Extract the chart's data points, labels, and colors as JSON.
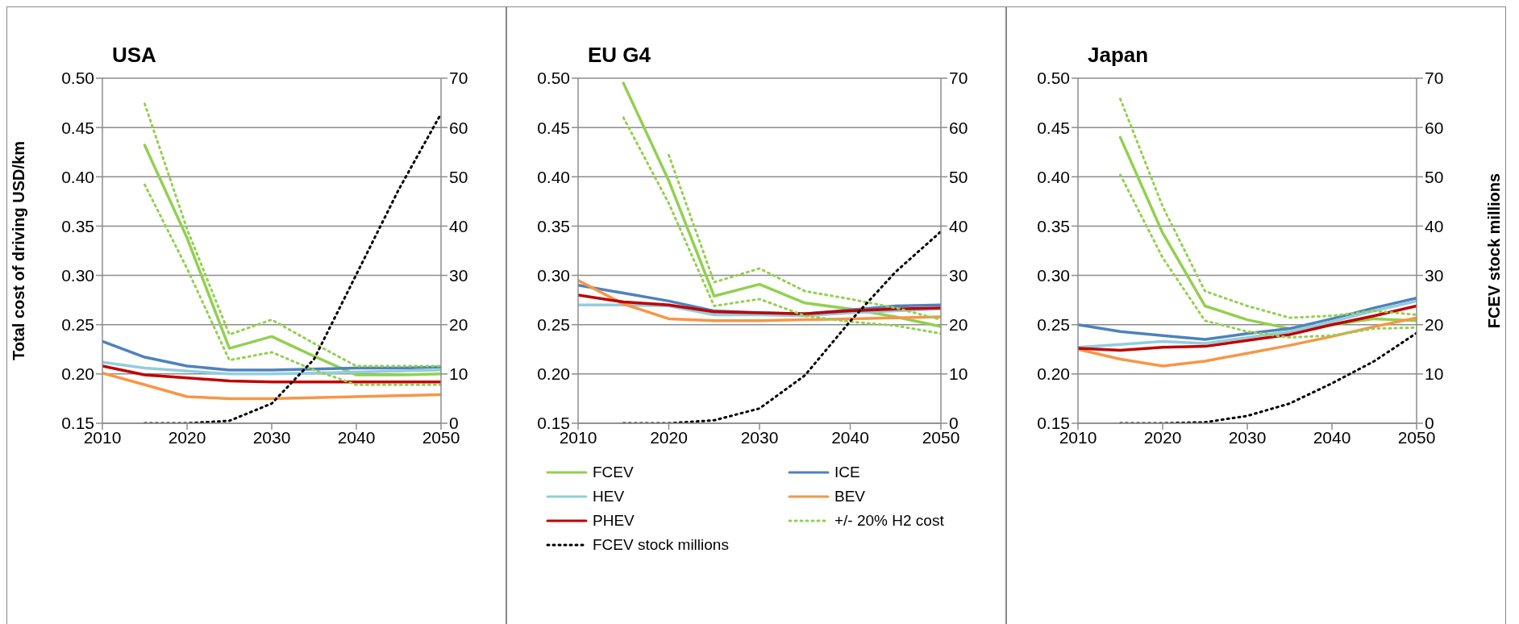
{
  "chart_data": [
    {
      "type": "line",
      "title": "USA",
      "ylabel": "Total cost of driving USD/km",
      "x": [
        2015,
        2020,
        2025,
        2030,
        2035,
        2040,
        2045,
        2050
      ],
      "xlim": [
        2010,
        2050
      ],
      "xticks": [
        2010,
        2020,
        2030,
        2040,
        2050
      ],
      "ylim": [
        0.15,
        0.5
      ],
      "yticks": [
        {
          "value": 0.15,
          "label": "0.15"
        },
        {
          "value": 0.2,
          "label": "0.20"
        },
        {
          "value": 0.25,
          "label": "0.25"
        },
        {
          "value": 0.3,
          "label": "0.30"
        },
        {
          "value": 0.35,
          "label": "0.35"
        },
        {
          "value": 0.4,
          "label": "0.40"
        },
        {
          "value": 0.45,
          "label": "0.45"
        },
        {
          "value": 0.5,
          "label": "0.50"
        }
      ],
      "y2lim": [
        0,
        70
      ],
      "y2ticks": [
        0,
        10,
        20,
        30,
        40,
        50,
        60,
        70
      ],
      "grid": "y",
      "legend": false,
      "marker": "none",
      "series": [
        {
          "color": "#92d050",
          "x": [
            2015,
            2020,
            2025,
            2030,
            2035,
            2040,
            2045,
            2050
          ],
          "values": [
            0.432,
            0.338,
            0.226,
            0.238,
            0.218,
            0.199,
            0.199,
            0.2
          ]
        },
        {
          "color": "#4f81bd",
          "x": [
            2010,
            2015,
            2020,
            2025,
            2030,
            2035,
            2040,
            2045,
            2050
          ],
          "values": [
            0.233,
            0.217,
            0.208,
            0.204,
            0.204,
            0.205,
            0.206,
            0.206,
            0.207
          ]
        },
        {
          "color": "#93cddd",
          "x": [
            2010,
            2015,
            2020,
            2025,
            2030,
            2035,
            2040,
            2045,
            2050
          ],
          "values": [
            0.212,
            0.206,
            0.203,
            0.2,
            0.2,
            0.201,
            0.202,
            0.203,
            0.204
          ]
        },
        {
          "color": "#f79646",
          "x": [
            2010,
            2015,
            2020,
            2025,
            2030,
            2035,
            2040,
            2045,
            2050
          ],
          "values": [
            0.201,
            0.189,
            0.177,
            0.175,
            0.175,
            0.176,
            0.177,
            0.178,
            0.179
          ]
        },
        {
          "color": "#c00000",
          "x": [
            2010,
            2015,
            2020,
            2025,
            2030,
            2035,
            2040,
            2045,
            2050
          ],
          "values": [
            0.208,
            0.199,
            0.196,
            0.193,
            0.192,
            0.192,
            0.192,
            0.192,
            0.192
          ]
        },
        {
          "color": "#92d050",
          "line_style": "dotted",
          "values": [
            0.474,
            0.347,
            0.24,
            0.255,
            0.231,
            0.208,
            0.208,
            0.208
          ]
        },
        {
          "color": "#92d050",
          "line_style": "dotted",
          "values": [
            0.392,
            0.307,
            0.214,
            0.222,
            0.204,
            0.189,
            0.189,
            0.189
          ]
        },
        {
          "color": "#000000",
          "line_style": "dotted",
          "axis": "y2",
          "values": [
            0,
            0,
            0.5,
            4,
            13,
            30.2,
            47.4,
            62.8
          ]
        }
      ]
    },
    {
      "type": "line",
      "title": "EU G4",
      "x": [
        2015,
        2020,
        2025,
        2030,
        2035,
        2040,
        2045,
        2050
      ],
      "xlim": [
        2010,
        2050
      ],
      "xticks": [
        2010,
        2020,
        2030,
        2040,
        2050
      ],
      "ylim": [
        0.15,
        0.5
      ],
      "yticks": [
        {
          "value": 0.15,
          "label": "0.15"
        },
        {
          "value": 0.2,
          "label": "0.20"
        },
        {
          "value": 0.25,
          "label": "0.25"
        },
        {
          "value": 0.3,
          "label": "0.30"
        },
        {
          "value": 0.35,
          "label": "0.35"
        },
        {
          "value": 0.4,
          "label": "0.40"
        },
        {
          "value": 0.45,
          "label": "0.45"
        },
        {
          "value": 0.5,
          "label": "0.50"
        }
      ],
      "y2lim": [
        0,
        70
      ],
      "y2ticks": [
        0,
        10,
        20,
        30,
        40,
        50,
        60,
        70
      ],
      "grid": "y",
      "legend": "bottom",
      "marker": "none",
      "series": [
        {
          "name": "FCEV",
          "color": "#92d050",
          "values": [
            0.495,
            0.396,
            0.279,
            0.291,
            0.272,
            0.266,
            0.258,
            0.248
          ]
        },
        {
          "name": "ICE",
          "color": "#4f81bd",
          "x": [
            2010,
            2015,
            2020,
            2025,
            2030,
            2035,
            2040,
            2045,
            2050
          ],
          "values": [
            0.29,
            0.282,
            0.274,
            0.264,
            0.262,
            0.261,
            0.265,
            0.269,
            0.27
          ]
        },
        {
          "name": "HEV",
          "color": "#93cddd",
          "x": [
            2010,
            2015,
            2020,
            2025,
            2030,
            2035,
            2040,
            2045,
            2050
          ],
          "values": [
            0.27,
            0.27,
            0.269,
            0.26,
            0.26,
            0.259,
            0.262,
            0.264,
            0.266
          ]
        },
        {
          "name": "BEV",
          "color": "#f79646",
          "x": [
            2010,
            2015,
            2020,
            2025,
            2030,
            2035,
            2040,
            2045,
            2050
          ],
          "values": [
            0.295,
            0.271,
            0.256,
            0.254,
            0.254,
            0.255,
            0.256,
            0.257,
            0.258
          ]
        },
        {
          "name": "PHEV",
          "color": "#c00000",
          "x": [
            2010,
            2015,
            2020,
            2025,
            2030,
            2035,
            2040,
            2045,
            2050
          ],
          "values": [
            0.28,
            0.273,
            0.27,
            0.263,
            0.262,
            0.261,
            0.264,
            0.266,
            0.267
          ]
        },
        {
          "name": "+/- 20% H2 cost",
          "color": "#92d050",
          "line_style": "dotted",
          "values": [
            null,
            0.422,
            0.293,
            0.307,
            0.284,
            0.276,
            0.267,
            0.255
          ]
        },
        {
          "color": "#92d050",
          "line_style": "dotted",
          "values": [
            0.46,
            0.373,
            0.269,
            0.276,
            0.259,
            0.253,
            0.249,
            0.241
          ]
        },
        {
          "name": "FCEV stock millions",
          "color": "#000000",
          "line_style": "dotted",
          "axis": "y2",
          "values": [
            0,
            0,
            0.6,
            3,
            9.7,
            20.7,
            30.7,
            38.9
          ]
        }
      ]
    },
    {
      "type": "line",
      "title": "Japan",
      "y2label": "FCEV stock millions",
      "x": [
        2015,
        2020,
        2025,
        2030,
        2035,
        2040,
        2045,
        2050
      ],
      "xlim": [
        2010,
        2050
      ],
      "xticks": [
        2010,
        2020,
        2030,
        2040,
        2050
      ],
      "ylim": [
        0.15,
        0.5
      ],
      "yticks": [
        {
          "value": 0.15,
          "label": "0.15"
        },
        {
          "value": 0.2,
          "label": "0.20"
        },
        {
          "value": 0.25,
          "label": "0.25"
        },
        {
          "value": 0.3,
          "label": "0.30"
        },
        {
          "value": 0.35,
          "label": "0.35"
        },
        {
          "value": 0.4,
          "label": "0.40"
        },
        {
          "value": 0.45,
          "label": "0.45"
        },
        {
          "value": 0.5,
          "label": "0.50"
        }
      ],
      "y2lim": [
        0,
        70
      ],
      "y2ticks": [
        0,
        10,
        20,
        30,
        40,
        50,
        60,
        70
      ],
      "grid": "y",
      "legend": false,
      "marker": "none",
      "series": [
        {
          "color": "#92d050",
          "values": [
            0.44,
            0.343,
            0.269,
            0.255,
            0.246,
            0.25,
            0.256,
            0.254
          ]
        },
        {
          "color": "#4f81bd",
          "x": [
            2010,
            2015,
            2020,
            2025,
            2030,
            2035,
            2040,
            2045,
            2050
          ],
          "values": [
            0.25,
            0.243,
            0.239,
            0.235,
            0.241,
            0.246,
            0.256,
            0.267,
            0.277
          ]
        },
        {
          "color": "#93cddd",
          "x": [
            2010,
            2015,
            2020,
            2025,
            2030,
            2035,
            2040,
            2045,
            2050
          ],
          "values": [
            0.227,
            0.23,
            0.233,
            0.231,
            0.237,
            0.243,
            0.253,
            0.264,
            0.274
          ]
        },
        {
          "color": "#f79646",
          "x": [
            2010,
            2015,
            2020,
            2025,
            2030,
            2035,
            2040,
            2045,
            2050
          ],
          "values": [
            0.225,
            0.215,
            0.208,
            0.213,
            0.221,
            0.229,
            0.238,
            0.248,
            0.257
          ]
        },
        {
          "color": "#c00000",
          "x": [
            2010,
            2015,
            2020,
            2025,
            2030,
            2035,
            2040,
            2045,
            2050
          ],
          "values": [
            0.226,
            0.224,
            0.227,
            0.228,
            0.234,
            0.24,
            0.25,
            0.259,
            0.269
          ]
        },
        {
          "color": "#92d050",
          "line_style": "dotted",
          "values": [
            0.479,
            0.37,
            0.284,
            0.269,
            0.257,
            0.259,
            0.264,
            0.26
          ]
        },
        {
          "color": "#92d050",
          "line_style": "dotted",
          "values": [
            0.402,
            0.318,
            0.254,
            0.243,
            0.237,
            0.239,
            0.246,
            0.247
          ]
        },
        {
          "color": "#000000",
          "line_style": "dotted",
          "axis": "y2",
          "values": [
            0,
            0,
            0.2,
            1.5,
            4,
            8.1,
            12.6,
            18.3
          ]
        }
      ]
    }
  ]
}
